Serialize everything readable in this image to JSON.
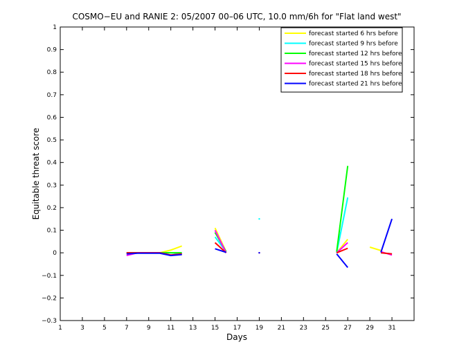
{
  "chart_data": {
    "type": "line",
    "title": "COSMO−EU and RANIE 2: 05/2007 00–06 UTC, 10.0 mm/6h for \"Flat land west\"",
    "xlabel": "Days",
    "ylabel": "Equitable threat score",
    "xlim": [
      1,
      33
    ],
    "ylim": [
      -0.3,
      1
    ],
    "xticks": [
      1,
      3,
      5,
      7,
      9,
      11,
      13,
      15,
      17,
      19,
      21,
      23,
      25,
      27,
      29,
      31
    ],
    "yticks": [
      -0.3,
      -0.2,
      -0.1,
      0,
      0.1,
      0.2,
      0.3,
      0.4,
      0.5,
      0.6,
      0.7,
      0.8,
      0.9,
      1
    ],
    "ytick_labels": [
      "−0.3",
      "−0.2",
      "−0.1",
      "0",
      "0.1",
      "0.2",
      "0.3",
      "0.4",
      "0.5",
      "0.6",
      "0.7",
      "0.8",
      "0.9",
      "1"
    ],
    "grid": false,
    "legend_position": "top-right",
    "series": [
      {
        "name": "forecast started 6 hrs before",
        "color": "#ffff00",
        "values": [
          [
            7,
            -0.005
          ],
          [
            8,
            0
          ],
          [
            9,
            0
          ],
          [
            10,
            0
          ],
          [
            11,
            0.012
          ],
          [
            12,
            0.03
          ],
          [
            15,
            0.11
          ],
          [
            16,
            0.005
          ],
          [
            26,
            0
          ],
          [
            27,
            0.06
          ],
          [
            29,
            0.025
          ],
          [
            30,
            0.01
          ]
        ]
      },
      {
        "name": "forecast started 9 hrs before",
        "color": "#00ffff",
        "values": [
          [
            7,
            0
          ],
          [
            8,
            0
          ],
          [
            9,
            0
          ],
          [
            10,
            0
          ],
          [
            11,
            0
          ],
          [
            12,
            -0.005
          ],
          [
            15,
            0.07
          ],
          [
            16,
            0.005
          ],
          [
            19,
            0.15
          ],
          [
            26,
            0
          ],
          [
            27,
            0.245
          ],
          [
            30,
            0
          ],
          [
            31,
            -0.005
          ]
        ]
      },
      {
        "name": "forecast started 12 hrs before",
        "color": "#00ff00",
        "values": [
          [
            7,
            0
          ],
          [
            8,
            0
          ],
          [
            9,
            0
          ],
          [
            10,
            0
          ],
          [
            11,
            0
          ],
          [
            12,
            0
          ],
          [
            15,
            0.09
          ],
          [
            16,
            0.005
          ],
          [
            26,
            0.005
          ],
          [
            27,
            0.385
          ]
        ]
      },
      {
        "name": "forecast started 15 hrs before",
        "color": "#ff00ff",
        "values": [
          [
            7,
            -0.012
          ],
          [
            8,
            0
          ],
          [
            9,
            0
          ],
          [
            10,
            0
          ],
          [
            11,
            -0.01
          ],
          [
            12,
            -0.005
          ],
          [
            15,
            0.1
          ],
          [
            16,
            0
          ],
          [
            26,
            0
          ],
          [
            27,
            0.045
          ],
          [
            30,
            0.005
          ],
          [
            31,
            -0.01
          ]
        ]
      },
      {
        "name": "forecast started 18 hrs before",
        "color": "#ff0000",
        "values": [
          [
            7,
            0
          ],
          [
            8,
            0
          ],
          [
            9,
            0
          ],
          [
            10,
            0
          ],
          [
            11,
            -0.01
          ],
          [
            12,
            -0.005
          ],
          [
            15,
            0.045
          ],
          [
            16,
            0
          ],
          [
            19,
            0
          ],
          [
            26,
            0
          ],
          [
            27,
            0.02
          ],
          [
            30,
            0
          ],
          [
            31,
            -0.005
          ]
        ]
      },
      {
        "name": "forecast started 21 hrs before",
        "color": "#0000ff",
        "values": [
          [
            7,
            -0.005
          ],
          [
            8,
            -0.002
          ],
          [
            9,
            -0.002
          ],
          [
            10,
            -0.002
          ],
          [
            11,
            -0.012
          ],
          [
            12,
            -0.008
          ],
          [
            15,
            0.018
          ],
          [
            16,
            0.002
          ],
          [
            19,
            0
          ],
          [
            26,
            -0.005
          ],
          [
            27,
            -0.065
          ],
          [
            30,
            0.002
          ],
          [
            31,
            0.15
          ]
        ]
      }
    ]
  }
}
